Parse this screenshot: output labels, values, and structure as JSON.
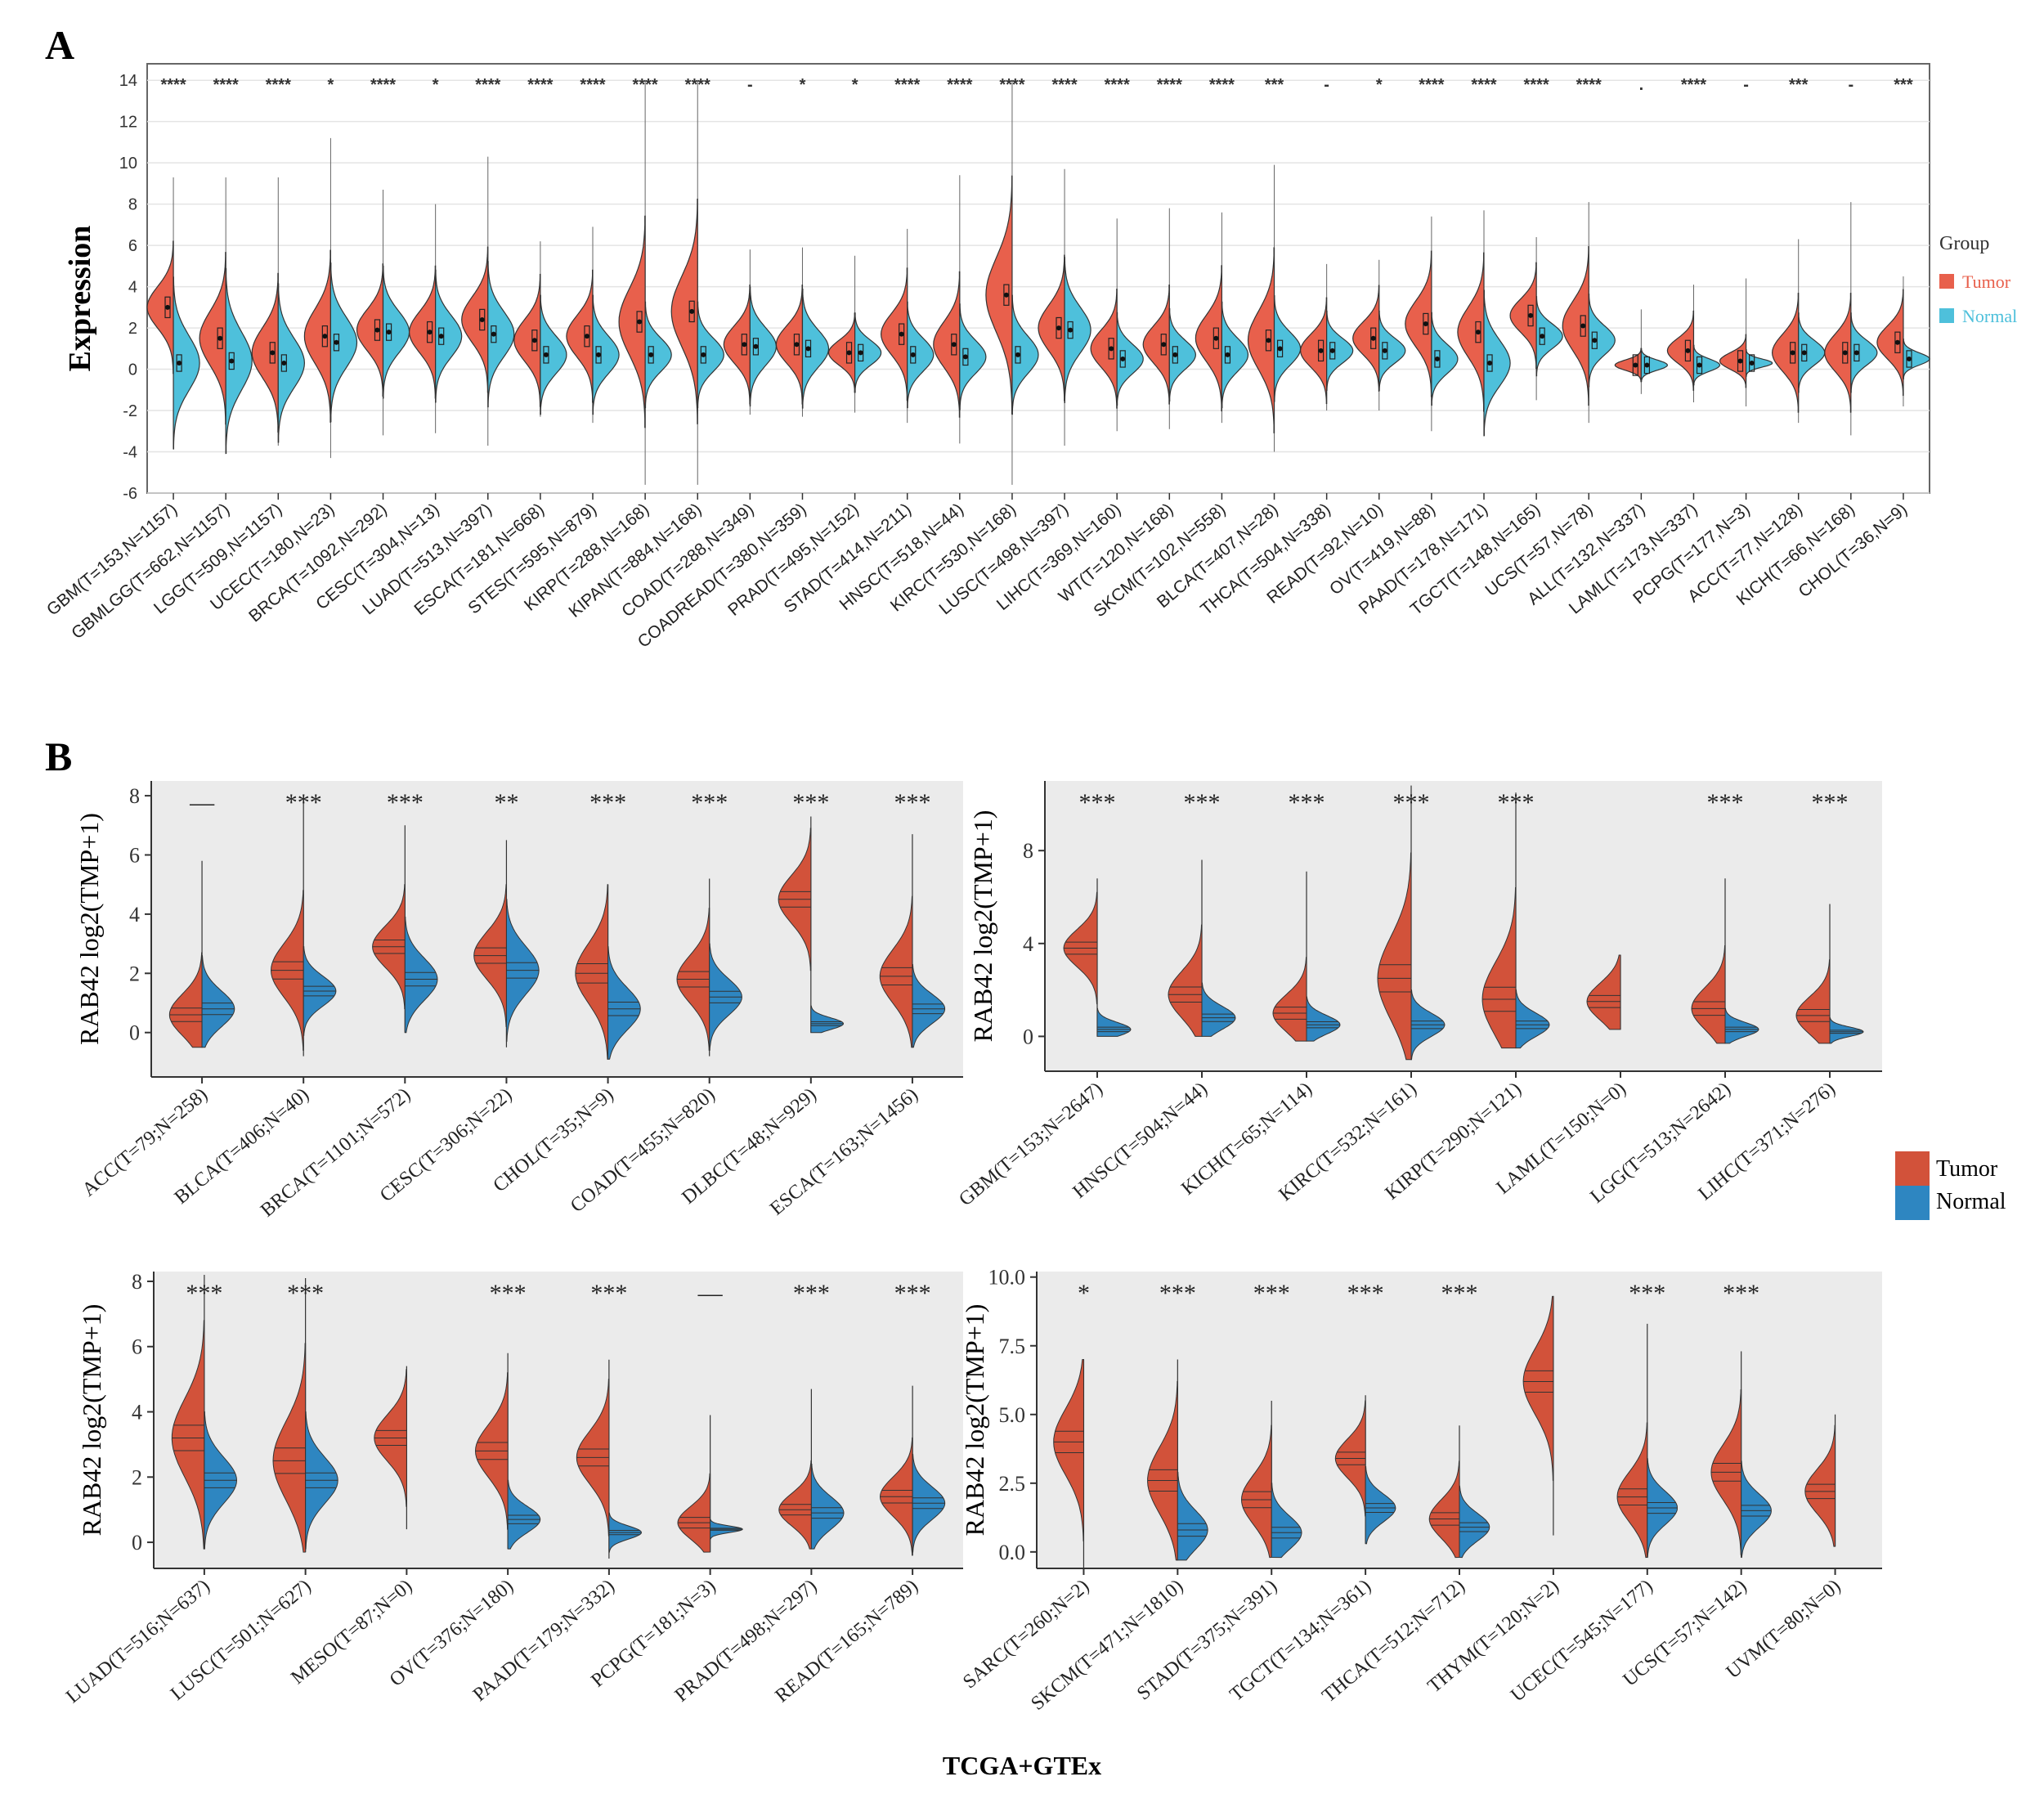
{
  "colors": {
    "tumor": "#E8604C",
    "normal": "#4EC0DB",
    "tumor_b": "#D2523A",
    "normal_b": "#2E86C1",
    "panel_bg": "#EBEBEB"
  },
  "panelA": {
    "label": "A",
    "ylabel": "Expression",
    "ylim": [
      -6,
      14
    ],
    "yticks": [
      "-6",
      "-4",
      "-2",
      "0",
      "2",
      "4",
      "6",
      "8",
      "10",
      "12",
      "14"
    ],
    "legend": {
      "title": "Group",
      "tumor": "Tumor",
      "normal": "Normal"
    },
    "categories": [
      "GBM(T=153,N=1157)",
      "GBMLGG(T=662,N=1157)",
      "LGG(T=509,N=1157)",
      "UCEC(T=180,N=23)",
      "BRCA(T=1092,N=292)",
      "CESC(T=304,N=13)",
      "LUAD(T=513,N=397)",
      "ESCA(T=181,N=668)",
      "STES(T=595,N=879)",
      "KIRP(T=288,N=168)",
      "KIPAN(T=884,N=168)",
      "COAD(T=288,N=349)",
      "COADREAD(T=380,N=359)",
      "PRAD(T=495,N=152)",
      "STAD(T=414,N=211)",
      "HNSC(T=518,N=44)",
      "KIRC(T=530,N=168)",
      "LUSC(T=498,N=397)",
      "LIHC(T=369,N=160)",
      "WT(T=120,N=168)",
      "SKCM(T=102,N=558)",
      "BLCA(T=407,N=28)",
      "THCA(T=504,N=338)",
      "READ(T=92,N=10)",
      "OV(T=419,N=88)",
      "PAAD(T=178,N=171)",
      "TGCT(T=148,N=165)",
      "UCS(T=57,N=78)",
      "ALL(T=132,N=337)",
      "LAML(T=173,N=337)",
      "PCPG(T=177,N=3)",
      "ACC(T=77,N=128)",
      "KICH(T=66,N=168)",
      "CHOL(T=36,N=9)"
    ],
    "significance": [
      "****",
      "****",
      "****",
      "*",
      "****",
      "*",
      "****",
      "****",
      "****",
      "****",
      "****",
      "-",
      "*",
      "*",
      "****",
      "****",
      "****",
      "****",
      "****",
      "****",
      "****",
      "***",
      "-",
      "*",
      "****",
      "****",
      "****",
      "****",
      ".",
      "****",
      "-",
      "***",
      "-",
      "***"
    ],
    "tumor_median": [
      3.0,
      1.5,
      0.8,
      1.6,
      1.9,
      1.8,
      2.4,
      1.4,
      1.6,
      2.3,
      2.8,
      1.2,
      1.2,
      0.8,
      1.7,
      1.2,
      3.6,
      2.0,
      1.0,
      1.2,
      1.5,
      1.4,
      0.9,
      1.5,
      2.2,
      1.8,
      2.6,
      2.1,
      0.2,
      0.9,
      0.4,
      0.8,
      0.8,
      1.3
    ],
    "tumor_spread": [
      1.0,
      1.3,
      1.2,
      1.3,
      1.0,
      1.0,
      1.1,
      1.0,
      1.0,
      1.6,
      1.7,
      0.9,
      0.9,
      0.6,
      1.0,
      1.1,
      1.8,
      1.1,
      0.9,
      0.9,
      1.1,
      1.4,
      0.8,
      0.8,
      1.1,
      1.2,
      0.8,
      1.2,
      0.25,
      0.6,
      0.4,
      0.9,
      0.9,
      0.8
    ],
    "normal_median": [
      0.3,
      0.4,
      0.3,
      1.3,
      1.8,
      1.6,
      1.7,
      0.7,
      0.7,
      0.7,
      0.7,
      1.1,
      1.0,
      0.8,
      0.7,
      0.6,
      0.7,
      1.9,
      0.5,
      0.7,
      0.7,
      1.0,
      0.9,
      0.9,
      0.5,
      0.3,
      1.6,
      1.4,
      0.2,
      0.2,
      0.3,
      0.8,
      0.8,
      0.5
    ],
    "normal_spread": [
      1.3,
      1.4,
      1.2,
      1.2,
      1.0,
      1.0,
      1.1,
      0.9,
      0.9,
      0.8,
      0.8,
      0.9,
      0.9,
      0.6,
      0.8,
      0.8,
      0.9,
      1.1,
      0.7,
      0.7,
      0.8,
      0.8,
      0.6,
      0.6,
      0.7,
      1.1,
      0.6,
      0.7,
      0.25,
      0.3,
      0.2,
      0.6,
      0.6,
      0.3
    ],
    "max": [
      9.3,
      9.3,
      9.3,
      11.2,
      8.7,
      8.0,
      10.3,
      6.2,
      6.9,
      14.0,
      14.0,
      5.8,
      5.9,
      5.5,
      6.8,
      9.4,
      14.0,
      9.7,
      7.3,
      7.8,
      7.6,
      9.9,
      5.1,
      5.3,
      7.4,
      7.7,
      6.4,
      8.1,
      2.9,
      4.1,
      4.4,
      6.3,
      8.1,
      4.5
    ],
    "min": [
      -3.8,
      -3.7,
      -3.7,
      -4.3,
      -3.2,
      -3.1,
      -3.7,
      -2.3,
      -2.6,
      -5.6,
      -5.6,
      -2.2,
      -2.3,
      -2.1,
      -2.6,
      -3.6,
      -5.6,
      -3.7,
      -3.0,
      -2.9,
      -2.6,
      -4.0,
      -2.0,
      -2.0,
      -3.0,
      -3.2,
      -1.5,
      -2.6,
      -1.2,
      -1.6,
      -1.8,
      -2.6,
      -3.2,
      -1.8
    ]
  },
  "panelB": {
    "label": "B",
    "ylabel": "RAB42 log2(TMP+1)",
    "xlabel": "TCGA+GTEx",
    "legend": {
      "tumor": "Tumor",
      "normal": "Normal"
    },
    "subplots": [
      {
        "ylim": [
          -1.5,
          8.5
        ],
        "yticks": [
          "0",
          "2",
          "4",
          "6",
          "8"
        ],
        "ytick_values": [
          0,
          2,
          4,
          6,
          8
        ],
        "categories": [
          "ACC(T=79;N=258)",
          "BLCA(T=406;N=40)",
          "BRCA(T=1101;N=572)",
          "CESC(T=306;N=22)",
          "CHOL(T=35;N=9)",
          "COAD(T=455;N=820)",
          "DLBC(T=48;N=929)",
          "ESCA(T=163;N=1456)"
        ],
        "significance": [
          "—",
          "***",
          "***",
          "**",
          "***",
          "***",
          "***",
          "***"
        ],
        "tumor_median": [
          0.6,
          2.1,
          2.9,
          2.6,
          2.0,
          1.8,
          4.5,
          1.9
        ],
        "tumor_spread": [
          0.7,
          0.9,
          0.7,
          0.8,
          1.0,
          0.8,
          0.8,
          0.9
        ],
        "normal_median": [
          0.8,
          1.4,
          1.8,
          2.1,
          0.8,
          1.2,
          0.3,
          0.8
        ],
        "normal_spread": [
          0.6,
          0.5,
          0.7,
          0.8,
          0.7,
          0.6,
          0.2,
          0.5
        ],
        "max": [
          5.8,
          8.0,
          7.0,
          6.5,
          5.0,
          5.2,
          7.3,
          6.7
        ],
        "min": [
          -0.5,
          -0.8,
          0.0,
          -0.5,
          -0.9,
          -0.8,
          0.0,
          -0.5
        ]
      },
      {
        "ylim": [
          -1.5,
          11
        ],
        "yticks": [
          "0",
          "4",
          "8"
        ],
        "ytick_values": [
          0,
          4,
          8
        ],
        "categories": [
          "GBM(T=153;N=2647)",
          "HNSC(T=504;N=44)",
          "KICH(T=65;N=114)",
          "KIRC(T=532;N=161)",
          "KIRP(T=290;N=121)",
          "LAML(T=150;N=0)",
          "LGG(T=513;N=2642)",
          "LIHC(T=371;N=276)"
        ],
        "significance": [
          "***",
          "***",
          "***",
          "***",
          "***",
          "",
          "***",
          "***"
        ],
        "tumor_median": [
          3.8,
          1.8,
          1.0,
          2.5,
          1.6,
          1.5,
          1.2,
          0.9
        ],
        "tumor_spread": [
          0.8,
          1.0,
          0.8,
          1.8,
          1.6,
          0.8,
          0.9,
          0.8
        ],
        "normal_median": [
          0.3,
          0.8,
          0.5,
          0.5,
          0.5,
          null,
          0.3,
          0.2
        ],
        "normal_spread": [
          0.3,
          0.5,
          0.4,
          0.5,
          0.5,
          null,
          0.3,
          0.2
        ],
        "max": [
          6.8,
          7.6,
          7.1,
          10.8,
          10.5,
          3.5,
          6.8,
          5.7
        ],
        "min": [
          0.0,
          0.0,
          -0.2,
          -1.0,
          -0.5,
          0.3,
          -0.3,
          -0.3
        ]
      },
      {
        "ylim": [
          -0.8,
          8.3
        ],
        "yticks": [
          "0",
          "2",
          "4",
          "6",
          "8"
        ],
        "ytick_values": [
          0,
          2,
          4,
          6,
          8
        ],
        "categories": [
          "LUAD(T=516;N=637)",
          "LUSC(T=501;N=627)",
          "MESO(T=87;N=0)",
          "OV(T=376;N=180)",
          "PAAD(T=179;N=332)",
          "PCPG(T=181;N=3)",
          "PRAD(T=498;N=297)",
          "READ(T=165;N=789)"
        ],
        "significance": [
          "***",
          "***",
          "",
          "***",
          "***",
          "—",
          "***",
          "***"
        ],
        "tumor_median": [
          3.2,
          2.5,
          3.2,
          2.8,
          2.6,
          0.6,
          1.0,
          1.4
        ],
        "tumor_spread": [
          1.2,
          1.2,
          0.7,
          0.8,
          0.8,
          0.5,
          0.5,
          0.6
        ],
        "normal_median": [
          1.9,
          1.9,
          null,
          0.7,
          0.3,
          0.4,
          0.9,
          1.2
        ],
        "normal_spread": [
          0.7,
          0.7,
          null,
          0.4,
          0.2,
          0.1,
          0.5,
          0.5
        ],
        "max": [
          8.2,
          8.1,
          5.4,
          5.8,
          5.6,
          3.9,
          4.7,
          4.8
        ],
        "min": [
          -0.2,
          -0.3,
          0.4,
          -0.2,
          -0.5,
          -0.3,
          -0.2,
          -0.4
        ]
      },
      {
        "ylim": [
          -0.6,
          10.2
        ],
        "yticks": [
          "0.0",
          "2.5",
          "5.0",
          "7.5",
          "10.0"
        ],
        "ytick_values": [
          0,
          2.5,
          5,
          7.5,
          10
        ],
        "categories": [
          "SARC(T=260;N=2)",
          "SKCM(T=471;N=1810)",
          "STAD(T=375;N=391)",
          "TGCT(T=134;N=361)",
          "THCA(T=512;N=712)",
          "THYM(T=120;N=2)",
          "UCEC(T=545;N=177)",
          "UCS(T=57;N=142)",
          "UVM(T=80;N=0)"
        ],
        "significance": [
          "*",
          "***",
          "***",
          "***",
          "***",
          "",
          "***",
          "***",
          ""
        ],
        "tumor_median": [
          4.0,
          2.6,
          1.9,
          3.4,
          1.2,
          6.2,
          2.0,
          2.9,
          2.2
        ],
        "tumor_spread": [
          1.2,
          1.2,
          0.9,
          0.7,
          0.7,
          1.2,
          0.9,
          1.0,
          0.8
        ],
        "normal_median": [
          null,
          0.8,
          0.7,
          1.6,
          0.9,
          null,
          1.6,
          1.5,
          null
        ],
        "normal_spread": [
          null,
          0.7,
          0.6,
          0.5,
          0.5,
          null,
          0.6,
          0.6,
          null
        ],
        "max": [
          7.0,
          7.0,
          5.5,
          5.7,
          4.6,
          9.3,
          8.3,
          7.3,
          5.0
        ],
        "min": [
          -0.6,
          -0.3,
          -0.2,
          0.3,
          -0.2,
          0.6,
          -0.2,
          -0.2,
          0.2
        ]
      }
    ]
  }
}
